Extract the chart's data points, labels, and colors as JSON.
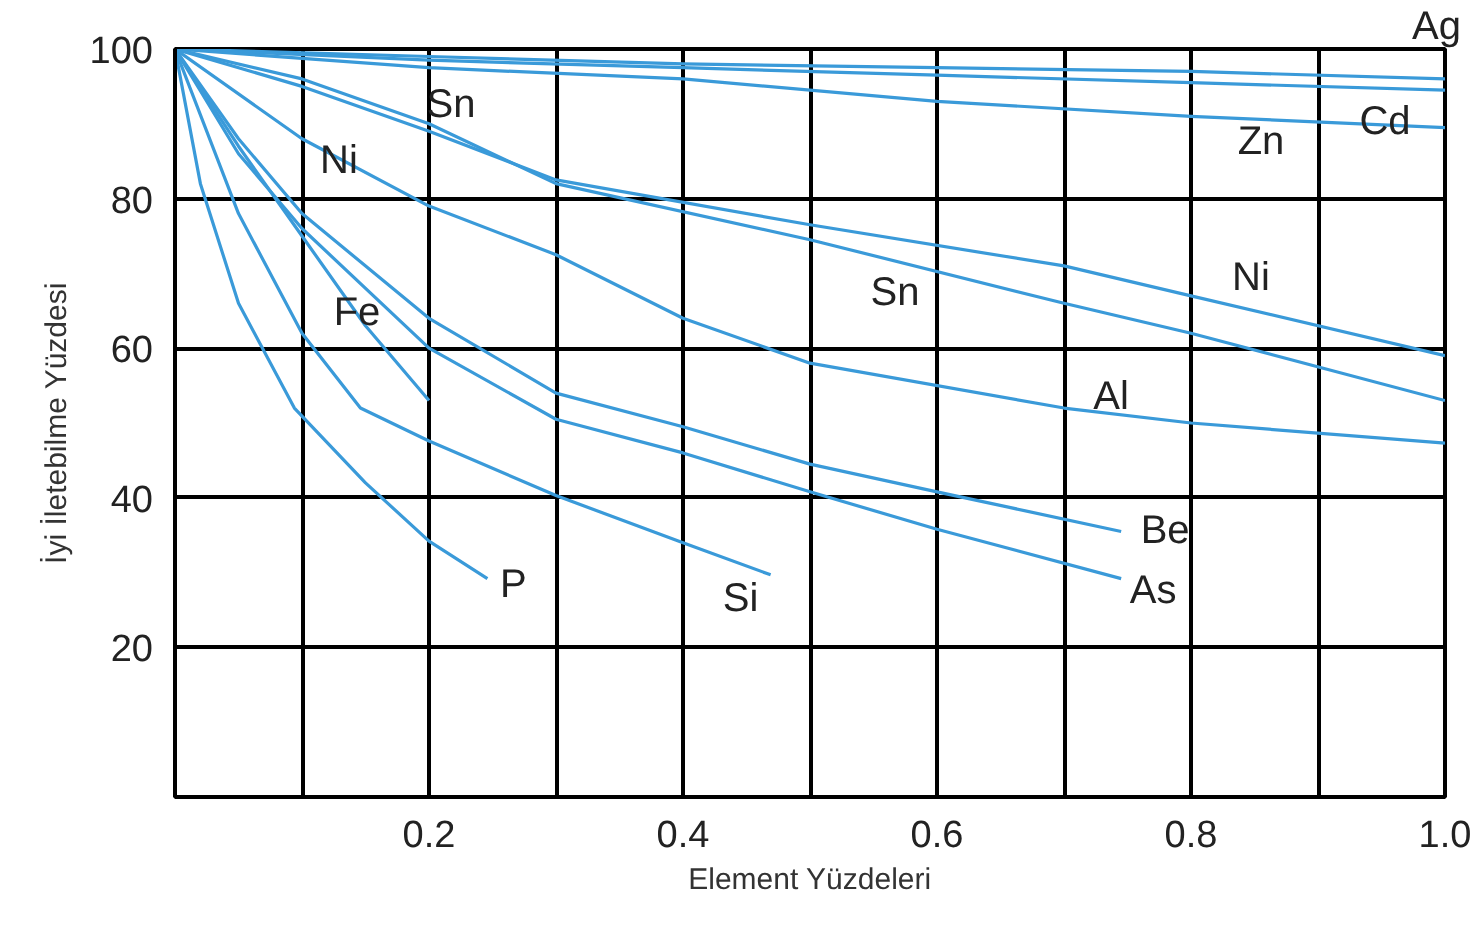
{
  "chart_data": {
    "type": "line",
    "xlabel": "Element Yüzdeleri",
    "ylabel": "İyi İletebilme Yüzdesi",
    "xlim": [
      0,
      1
    ],
    "ylim": [
      0,
      100
    ],
    "xticks": [
      {
        "value": 0.1,
        "label": null
      },
      0.2,
      {
        "value": 0.3,
        "label": null
      },
      0.4,
      {
        "value": 0.5,
        "label": null
      },
      0.6,
      {
        "value": 0.7,
        "label": null
      },
      0.8,
      {
        "value": 0.9,
        "label": null
      },
      {
        "value": 1,
        "label": "1.0"
      }
    ],
    "yticks": [
      20,
      40,
      60,
      80,
      100
    ],
    "grid": true,
    "marker": "none",
    "line_style": "solid",
    "series": [
      {
        "name": "Ag",
        "color": "#3a9ad9",
        "x": [
          0,
          0.2,
          0.4,
          0.6,
          0.8,
          1.0
        ],
        "values": [
          100,
          99,
          98,
          97.5,
          97,
          96
        ]
      },
      {
        "name": "Cd",
        "color": "#3a9ad9",
        "x": [
          0,
          0.2,
          0.4,
          0.6,
          0.8,
          1.0
        ],
        "values": [
          100,
          98.5,
          97.5,
          96.5,
          95.5,
          94.5
        ]
      },
      {
        "name": "Zn",
        "color": "#3a9ad9",
        "x": [
          0,
          0.2,
          0.4,
          0.6,
          0.8,
          1.0
        ],
        "values": [
          100,
          97.5,
          96,
          93,
          91,
          89.5
        ]
      },
      {
        "name": "Ni",
        "color": "#3a9ad9",
        "x": [
          0,
          0.1,
          0.2,
          0.3,
          0.5,
          0.7,
          0.8,
          1.0
        ],
        "values": [
          100,
          95,
          89,
          82.5,
          76.5,
          71,
          67,
          59
        ]
      },
      {
        "name": "Sn",
        "color": "#3a9ad9",
        "x": [
          0,
          0.1,
          0.2,
          0.3,
          0.5,
          0.7,
          0.8,
          1.0
        ],
        "values": [
          100,
          96,
          90,
          82,
          74.5,
          66,
          62,
          53
        ]
      },
      {
        "name": "Al",
        "color": "#3a9ad9",
        "x": [
          0,
          0.1,
          0.2,
          0.3,
          0.4,
          0.5,
          0.7,
          0.8,
          1.0
        ],
        "values": [
          100,
          88,
          79,
          72.5,
          64,
          58,
          52,
          50,
          47.3
        ]
      },
      {
        "name": "Be",
        "color": "#3a9ad9",
        "x": [
          0,
          0.05,
          0.1,
          0.2,
          0.3,
          0.4,
          0.5,
          0.6,
          0.745
        ],
        "values": [
          100,
          88,
          78,
          64,
          54,
          49.5,
          44.5,
          40.8,
          35.5
        ]
      },
      {
        "name": "As",
        "color": "#3a9ad9",
        "x": [
          0,
          0.05,
          0.1,
          0.2,
          0.3,
          0.4,
          0.5,
          0.6,
          0.745
        ],
        "values": [
          100,
          86,
          76,
          60,
          50.5,
          46,
          40.8,
          35.8,
          29.2
        ]
      },
      {
        "name": "Fe",
        "color": "#3a9ad9",
        "x": [
          0,
          0.05,
          0.1,
          0.15,
          0.2
        ],
        "values": [
          100,
          87,
          75,
          63,
          53
        ]
      },
      {
        "name": "Si",
        "color": "#3a9ad9",
        "x": [
          0,
          0.05,
          0.1,
          0.146,
          0.2,
          0.3,
          0.4,
          0.469
        ],
        "values": [
          100,
          78,
          62,
          52,
          47.6,
          40.3,
          34,
          29.7
        ]
      },
      {
        "name": "P",
        "color": "#3a9ad9",
        "x": [
          0,
          0.02,
          0.05,
          0.094,
          0.15,
          0.2,
          0.246
        ],
        "values": [
          100,
          82,
          66,
          52,
          42,
          34.2,
          29.2
        ]
      }
    ],
    "annotations": [
      "Sn",
      "Ni"
    ]
  }
}
